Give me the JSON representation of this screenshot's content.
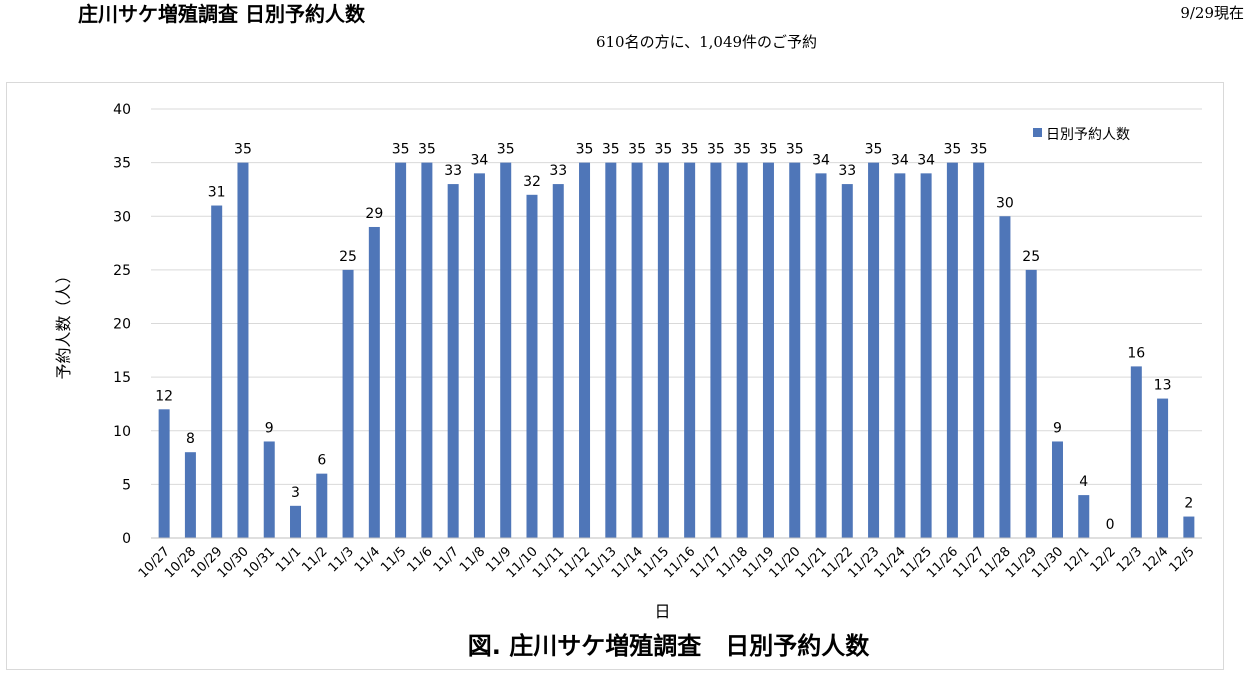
{
  "header": {
    "title": "庄川サケ増殖調査 日別予約人数",
    "as_of": "9/29現在",
    "summary": "610名の方に、1,049件のご予約"
  },
  "colors": {
    "bar": "#4f76b8",
    "grid": "#d9d9d9",
    "axis": "#bfbfbf"
  },
  "chart_data": {
    "type": "bar",
    "title": "図. 庄川サケ増殖調査　日別予約人数",
    "xlabel": "日",
    "ylabel": "予約人数（人）",
    "ylim": [
      0,
      40
    ],
    "yticks": [
      0,
      5,
      10,
      15,
      20,
      25,
      30,
      35,
      40
    ],
    "legend_position": "top-right",
    "grid": true,
    "categories": [
      "10/27",
      "10/28",
      "10/29",
      "10/30",
      "10/31",
      "11/1",
      "11/2",
      "11/3",
      "11/4",
      "11/5",
      "11/6",
      "11/7",
      "11/8",
      "11/9",
      "11/10",
      "11/11",
      "11/12",
      "11/13",
      "11/14",
      "11/15",
      "11/16",
      "11/17",
      "11/18",
      "11/19",
      "11/20",
      "11/21",
      "11/22",
      "11/23",
      "11/24",
      "11/25",
      "11/26",
      "11/27",
      "11/28",
      "11/29",
      "11/30",
      "12/1",
      "12/2",
      "12/3",
      "12/4",
      "12/5"
    ],
    "series": [
      {
        "name": "日別予約人数",
        "values": [
          12,
          8,
          31,
          35,
          9,
          3,
          6,
          25,
          29,
          35,
          35,
          33,
          34,
          35,
          32,
          33,
          35,
          35,
          35,
          35,
          35,
          35,
          35,
          35,
          35,
          34,
          33,
          35,
          34,
          34,
          35,
          35,
          30,
          25,
          9,
          4,
          0,
          16,
          13,
          2
        ]
      }
    ]
  }
}
